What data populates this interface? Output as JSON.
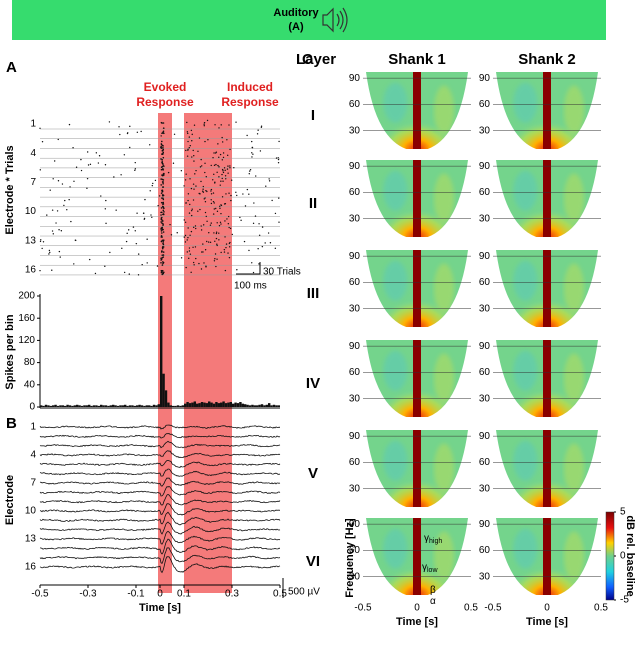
{
  "banner": {
    "title": "Auditory",
    "subtitle": "(A)"
  },
  "panel_a": {
    "label": "A",
    "evoked": [
      "Evoked",
      "Response"
    ],
    "induced": [
      "Induced",
      "Response"
    ],
    "evoked_window": [
      0,
      0.05
    ],
    "induced_window": [
      0.1,
      0.3
    ],
    "ylabel": "Electrode * Trials",
    "yticks": [
      1,
      4,
      7,
      10,
      13,
      16
    ],
    "scale_trials": "30 Trials",
    "scale_time": "100 ms",
    "psth": {
      "ylabel": "Spikes per bin",
      "ylim": [
        0,
        200
      ],
      "yticks": [
        0,
        40,
        80,
        120,
        160,
        200
      ],
      "values": [
        3,
        2,
        4,
        3,
        2,
        3,
        4,
        2,
        3,
        3,
        2,
        4,
        3,
        2,
        3,
        4,
        3,
        2,
        3,
        3,
        4,
        2,
        3,
        3,
        2,
        4,
        3,
        3,
        2,
        3,
        4,
        3,
        2,
        3,
        3,
        4,
        2,
        3,
        3,
        2,
        3,
        4,
        3,
        2,
        3,
        3,
        2,
        4,
        3,
        5,
        200,
        60,
        30,
        8,
        3,
        2,
        2,
        3,
        2,
        3,
        6,
        9,
        7,
        8,
        10,
        6,
        7,
        9,
        8,
        7,
        10,
        8,
        6,
        9,
        7,
        8,
        10,
        7,
        8,
        9,
        6,
        8,
        7,
        9,
        6,
        5,
        4,
        3,
        4,
        3,
        3,
        4,
        5,
        3,
        4,
        7,
        3,
        4,
        3,
        3
      ]
    }
  },
  "panel_b": {
    "label": "B",
    "ylabel": "Electrode",
    "yticks": [
      1,
      4,
      7,
      10,
      13,
      16
    ],
    "scale": "500 µV",
    "xlabel": "Time [s]",
    "xlim": [
      -0.5,
      0.5
    ],
    "xticks": [
      -0.5,
      -0.3,
      -0.1,
      0,
      0.1,
      0.3,
      0.5
    ]
  },
  "panel_c": {
    "label": "C",
    "layer_header": "Layer",
    "shanks": [
      "Shank 1",
      "Shank 2"
    ],
    "layers": [
      "I",
      "II",
      "III",
      "IV",
      "V",
      "VI"
    ],
    "ylabel": "Frequency [Hz]",
    "ylim": [
      9,
      97
    ],
    "yticks": [
      30,
      60,
      90
    ],
    "xlim": [
      -0.5,
      0.5
    ],
    "xticks": [
      -0.5,
      0,
      0.5
    ],
    "xlabel": "Time [s]",
    "colorbar": {
      "label": "dB rel. baseline",
      "ticks": [
        5,
        0,
        -5
      ]
    },
    "bands": [
      {
        "base": "γ",
        "sub": "high"
      },
      {
        "base": "γ",
        "sub": "low"
      },
      {
        "base": "β"
      },
      {
        "base": "α"
      }
    ]
  }
}
